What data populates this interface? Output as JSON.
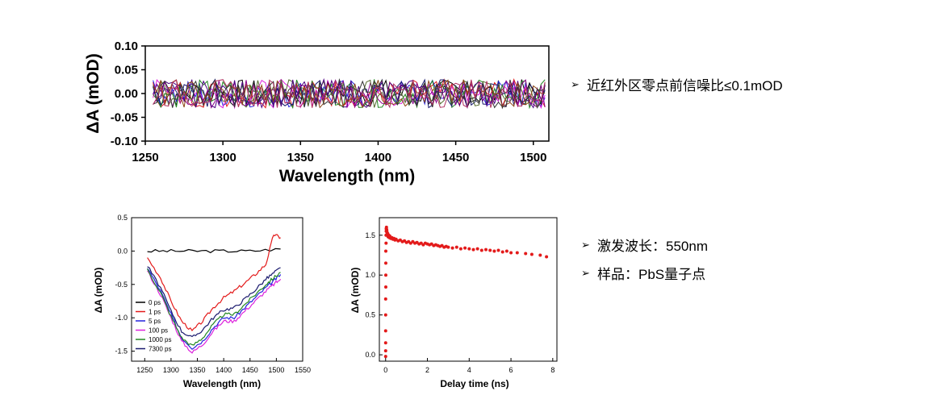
{
  "bullets_top": [
    {
      "text": "近红外区零点前信噪比≤0.1mOD"
    }
  ],
  "bullets_bottom": [
    {
      "text": "激发波长：550nm"
    },
    {
      "text": "样品：PbS量子点"
    }
  ],
  "bullet_symbol": "➢",
  "colors": {
    "red": "#e31a1a",
    "black": "#000000",
    "blue": "#2222dd",
    "magenta": "#dd22dd",
    "green": "#228822",
    "navy": "#1a1a6e"
  },
  "chart_data": [
    {
      "type": "line",
      "title": "",
      "xlabel": "Wavelength (nm)",
      "ylabel": "ΔA (mOD)",
      "xlim": [
        1250,
        1510
      ],
      "ylim": [
        -0.1,
        0.1
      ],
      "xticks": [
        "1250",
        "1300",
        "1350",
        "1400",
        "1450",
        "1500"
      ],
      "yticks": [
        "0.10",
        "0.05",
        "0.00",
        "-0.05",
        "-0.10"
      ],
      "series_count": 12,
      "description_values": {
        "x_start": 1255,
        "x_end": 1508,
        "noise_amplitude": 0.03
      },
      "series_colors": [
        "#000000",
        "#e31a1a",
        "#2222dd",
        "#dd22dd",
        "#228822",
        "#1a1a6e",
        "#8b008b",
        "#556b2f",
        "#4b0082",
        "#8b4513",
        "#333333",
        "#b03060"
      ]
    },
    {
      "type": "line",
      "title": "",
      "xlabel": "Wavelength (nm)",
      "ylabel": "ΔA (mOD)",
      "xlim": [
        1225,
        1550
      ],
      "ylim": [
        -1.65,
        0.5
      ],
      "xticks": [
        "1250",
        "1300",
        "1350",
        "1400",
        "1450",
        "1500",
        "1550"
      ],
      "yticks": [
        "0.5",
        "0.0",
        "-0.5",
        "-1.0",
        "-1.5"
      ],
      "legend_position": "bottom-left",
      "series": [
        {
          "name": "0 ps",
          "color": "#000000",
          "x": [
            1255,
            1300,
            1350,
            1400,
            1450,
            1508
          ],
          "y": [
            0.0,
            0.0,
            0.0,
            0.0,
            0.0,
            0.03
          ]
        },
        {
          "name": "1 ps",
          "color": "#e31a1a",
          "x": [
            1255,
            1280,
            1300,
            1320,
            1340,
            1360,
            1380,
            1400,
            1420,
            1440,
            1460,
            1480,
            1495,
            1508
          ],
          "y": [
            -0.1,
            -0.4,
            -0.75,
            -1.05,
            -1.2,
            -1.05,
            -0.85,
            -0.7,
            -0.6,
            -0.48,
            -0.35,
            -0.2,
            0.25,
            0.2
          ]
        },
        {
          "name": "5 ps",
          "color": "#2222dd",
          "x": [
            1255,
            1280,
            1300,
            1320,
            1340,
            1360,
            1380,
            1400,
            1420,
            1440,
            1460,
            1480,
            1495,
            1508
          ],
          "y": [
            -0.25,
            -0.6,
            -0.95,
            -1.3,
            -1.45,
            -1.35,
            -1.15,
            -1.0,
            -1.0,
            -0.85,
            -0.7,
            -0.55,
            -0.45,
            -0.35
          ]
        },
        {
          "name": "100 ps",
          "color": "#dd22dd",
          "x": [
            1255,
            1280,
            1300,
            1320,
            1340,
            1360,
            1380,
            1400,
            1420,
            1440,
            1460,
            1480,
            1495,
            1508
          ],
          "y": [
            -0.3,
            -0.65,
            -1.0,
            -1.35,
            -1.52,
            -1.4,
            -1.2,
            -1.05,
            -1.05,
            -0.9,
            -0.75,
            -0.6,
            -0.5,
            -0.42
          ]
        },
        {
          "name": "1000 ps",
          "color": "#228822",
          "x": [
            1255,
            1280,
            1300,
            1320,
            1340,
            1360,
            1380,
            1400,
            1420,
            1440,
            1460,
            1480,
            1495,
            1508
          ],
          "y": [
            -0.28,
            -0.62,
            -0.98,
            -1.3,
            -1.42,
            -1.3,
            -1.1,
            -0.95,
            -0.95,
            -0.8,
            -0.65,
            -0.5,
            -0.4,
            -0.32
          ]
        },
        {
          "name": "7300 ps",
          "color": "#1a1a6e",
          "x": [
            1255,
            1280,
            1300,
            1320,
            1340,
            1360,
            1380,
            1400,
            1420,
            1440,
            1460,
            1480,
            1495,
            1508
          ],
          "y": [
            -0.22,
            -0.55,
            -0.9,
            -1.2,
            -1.3,
            -1.18,
            -1.0,
            -0.88,
            -0.85,
            -0.72,
            -0.58,
            -0.42,
            -0.33,
            -0.25
          ]
        }
      ]
    },
    {
      "type": "scatter",
      "title": "",
      "xlabel": "Delay time (ns)",
      "ylabel": "ΔA (mOD)",
      "xlim": [
        -0.3,
        8.2
      ],
      "ylim": [
        -0.08,
        1.72
      ],
      "xticks": [
        "0",
        "2",
        "4",
        "6",
        "8"
      ],
      "yticks": [
        "1.5",
        "1.0",
        "0.5",
        "0.0"
      ],
      "series": [
        {
          "name": "",
          "color": "#e31a1a",
          "x": [
            0.0,
            0.0,
            0.0,
            0.0,
            0.0,
            0.0,
            0.01,
            0.01,
            0.01,
            0.01,
            0.02,
            0.02,
            0.03,
            0.03,
            0.04,
            0.05,
            0.06,
            0.07,
            0.08,
            0.1,
            0.12,
            0.15,
            0.18,
            0.2,
            0.25,
            0.3,
            0.35,
            0.4,
            0.45,
            0.5,
            0.6,
            0.7,
            0.8,
            0.9,
            1.0,
            1.1,
            1.2,
            1.3,
            1.4,
            1.5,
            1.6,
            1.7,
            1.8,
            1.9,
            2.0,
            2.1,
            2.2,
            2.3,
            2.4,
            2.5,
            2.6,
            2.7,
            2.8,
            2.9,
            3.0,
            3.2,
            3.4,
            3.6,
            3.8,
            4.0,
            4.2,
            4.4,
            4.6,
            4.8,
            5.0,
            5.2,
            5.4,
            5.6,
            5.8,
            6.0,
            6.3,
            6.7,
            7.0,
            7.4,
            7.7
          ],
          "y": [
            -0.02,
            0.05,
            0.15,
            0.3,
            0.5,
            0.7,
            0.85,
            1.0,
            1.15,
            1.3,
            1.4,
            1.5,
            1.55,
            1.58,
            1.6,
            1.57,
            1.55,
            1.53,
            1.5,
            1.52,
            1.48,
            1.5,
            1.47,
            1.49,
            1.46,
            1.47,
            1.45,
            1.46,
            1.44,
            1.45,
            1.43,
            1.44,
            1.42,
            1.43,
            1.41,
            1.42,
            1.4,
            1.42,
            1.4,
            1.41,
            1.39,
            1.4,
            1.38,
            1.4,
            1.39,
            1.38,
            1.39,
            1.37,
            1.38,
            1.37,
            1.36,
            1.37,
            1.35,
            1.36,
            1.35,
            1.34,
            1.35,
            1.33,
            1.34,
            1.33,
            1.32,
            1.33,
            1.31,
            1.32,
            1.31,
            1.3,
            1.31,
            1.29,
            1.3,
            1.28,
            1.28,
            1.27,
            1.26,
            1.25,
            1.23
          ]
        }
      ]
    }
  ]
}
